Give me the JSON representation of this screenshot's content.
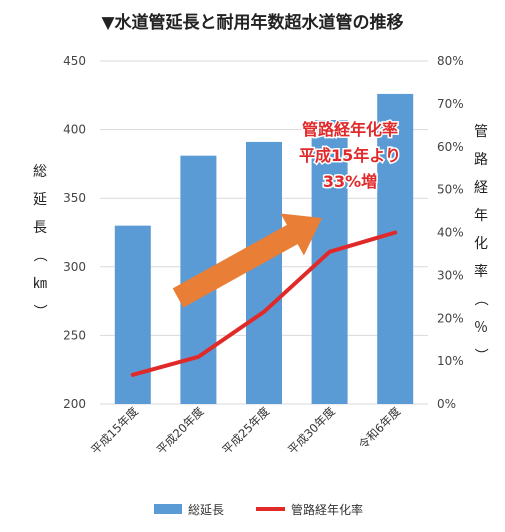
{
  "chart_data": {
    "type": "bar",
    "title": "▼水道管延長と耐用年数超水道管の推移",
    "categories": [
      "平成15年度",
      "平成20年度",
      "平成25年度",
      "平成30年度",
      "令和6年度"
    ],
    "ylabel_left": "総延長（㎞）",
    "ylabel_right": "管路経年化率（％）",
    "ylim": [
      200,
      450
    ],
    "ylim_right": [
      0,
      80
    ],
    "yticks_left": [
      "200",
      "250",
      "300",
      "350",
      "400",
      "450"
    ],
    "yticks_right": [
      "0%",
      "10%",
      "20%",
      "30%",
      "40%",
      "50%",
      "60%",
      "70%",
      "80%"
    ],
    "grid": true,
    "legend_position": "bottom",
    "series": [
      {
        "name": "総延長",
        "type": "bar",
        "axis": "left",
        "color": "#5b9bd5",
        "values": [
          330,
          381,
          391,
          407,
          426
        ]
      },
      {
        "name": "管路経年化率",
        "type": "line",
        "axis": "right",
        "color": "#e02a2a",
        "values": [
          6.8,
          11.0,
          21.5,
          35.5,
          40.0
        ]
      }
    ],
    "annotation": {
      "lines": [
        "管路経年化率",
        "平成15年より",
        "33%増"
      ],
      "arrow_color": "#e97e36"
    }
  }
}
